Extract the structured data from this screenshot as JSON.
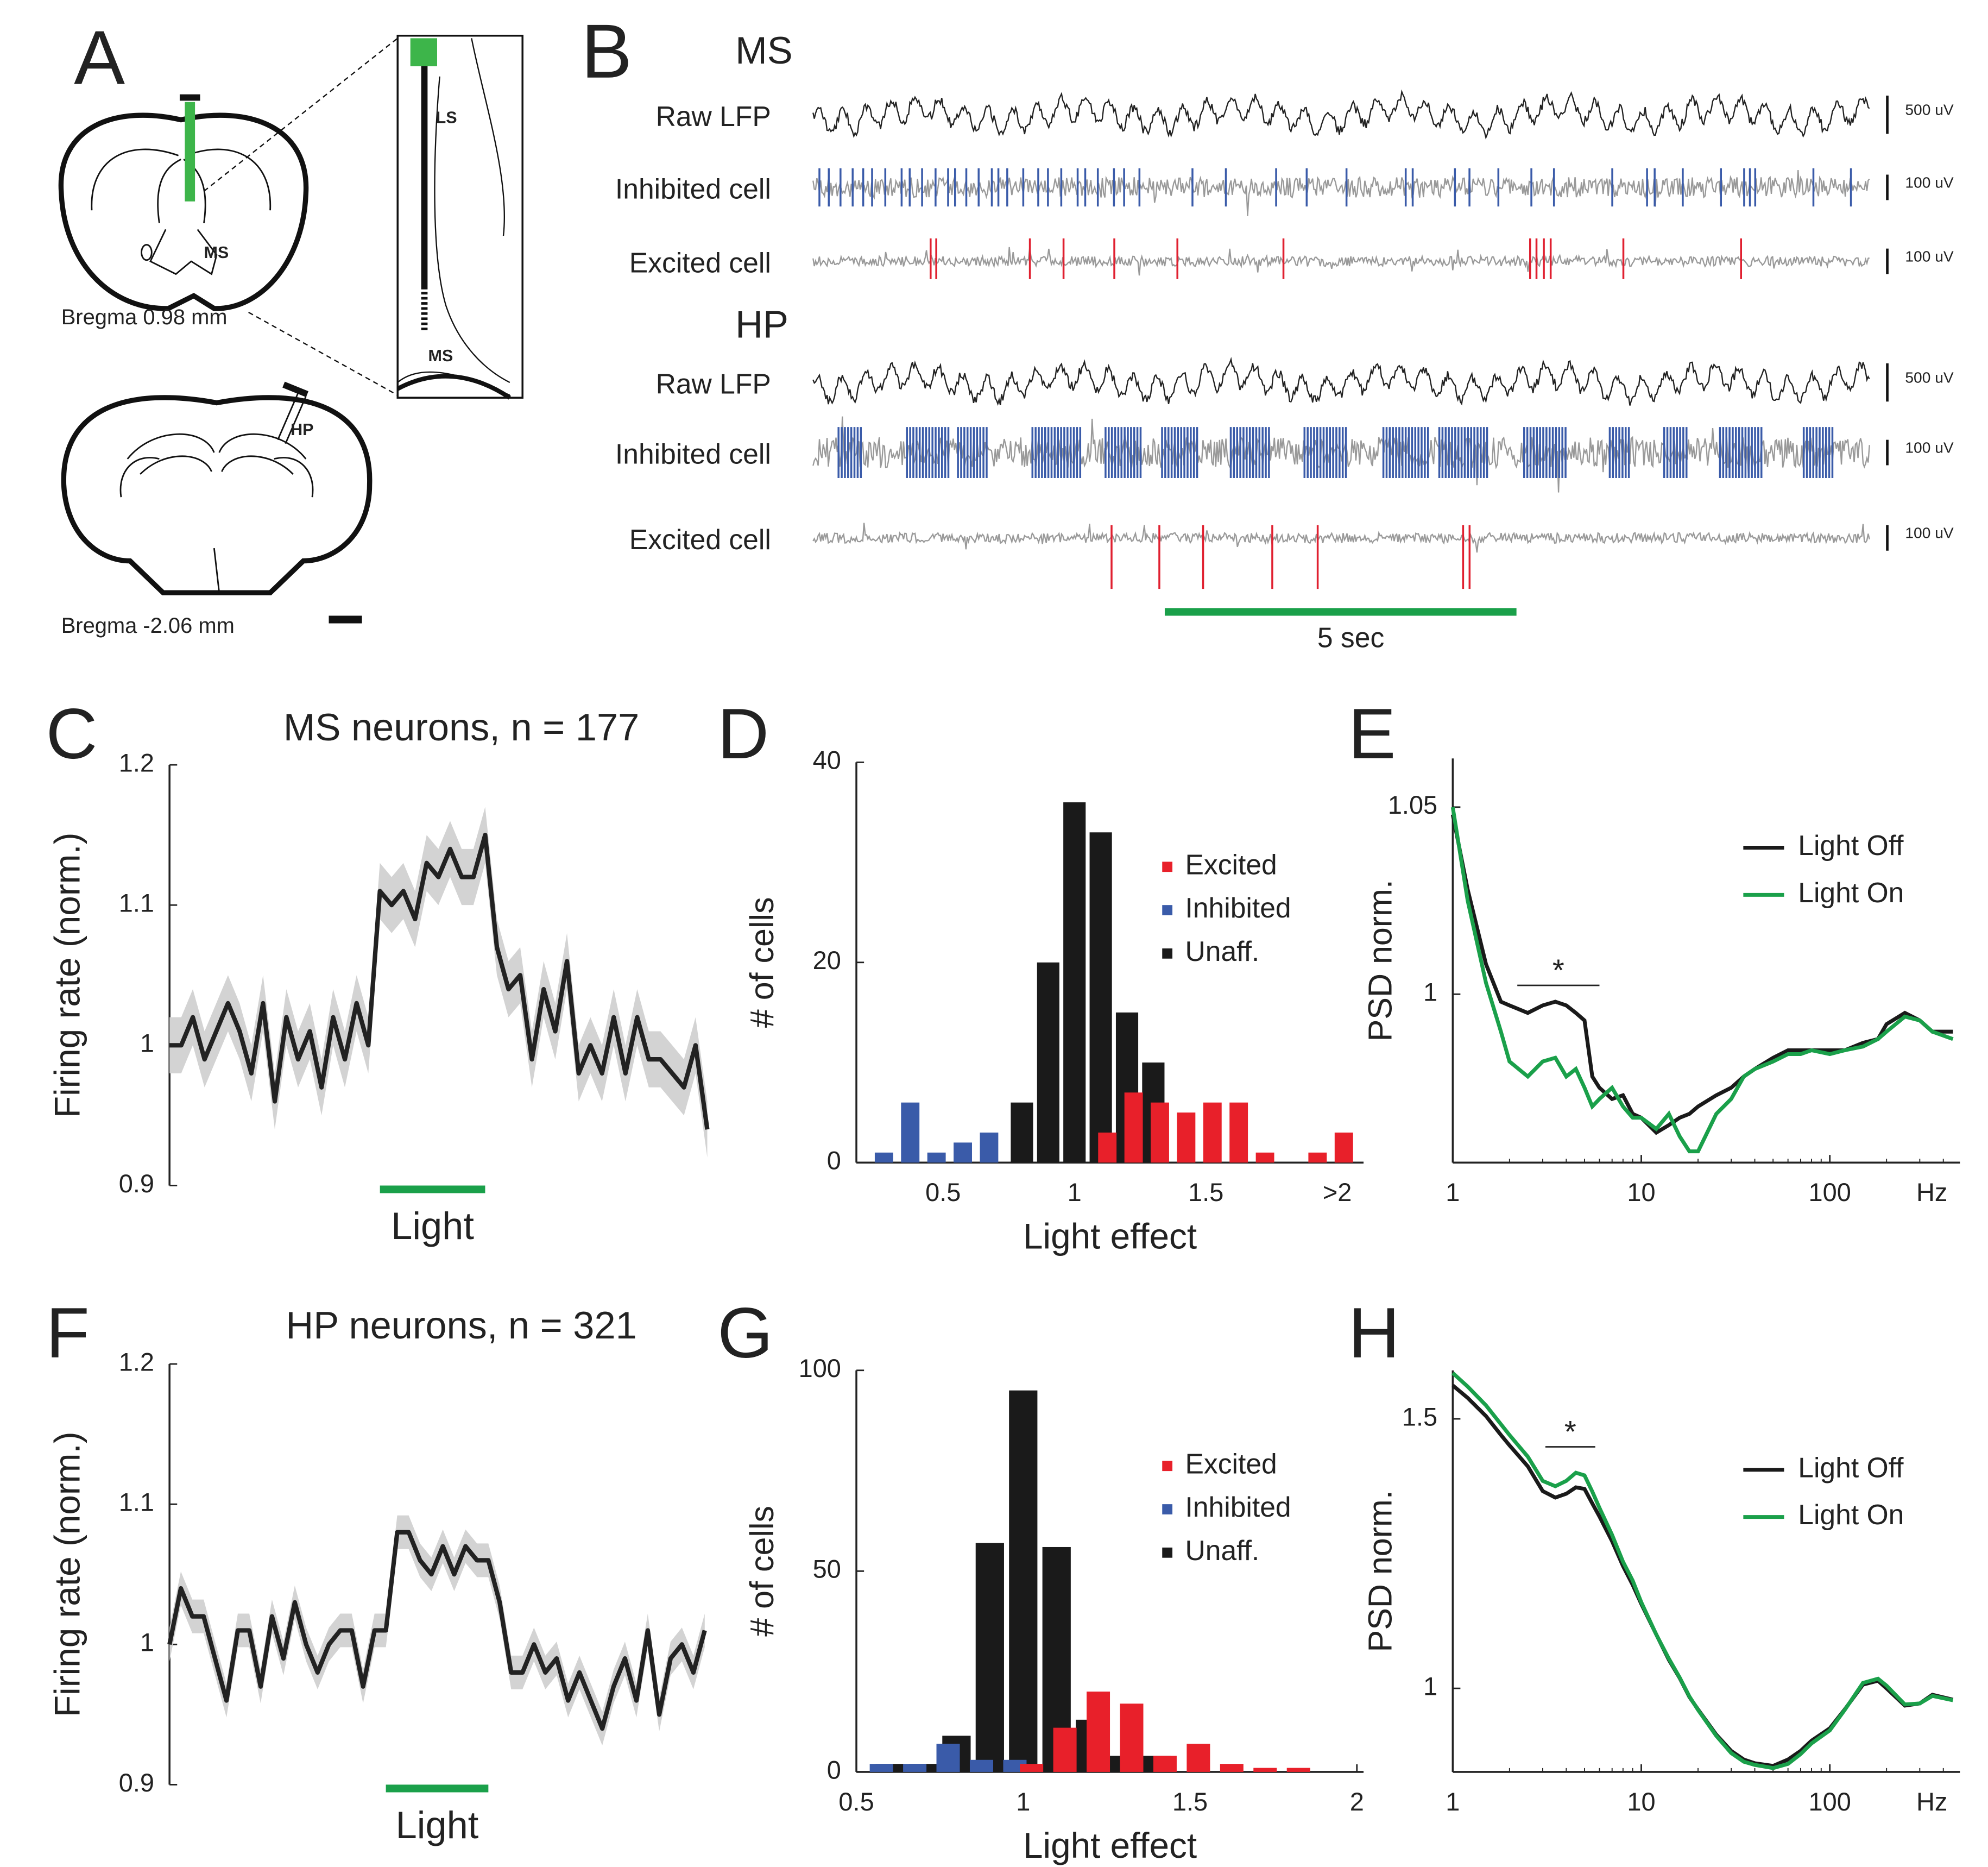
{
  "panel_a": {
    "letter": "A",
    "top_region": "MS",
    "inset_labels": [
      "LS",
      "MS"
    ],
    "top_caption": "Bregma 0.98 mm",
    "bottom_region": "HP",
    "bottom_caption": "Bregma -2.06 mm"
  },
  "panel_b": {
    "letter": "B",
    "groups": [
      {
        "name": "MS",
        "rows": [
          "Raw LFP",
          "Inhibited cell",
          "Excited cell"
        ],
        "scales": [
          "500 uV",
          "100 uV",
          "100 uV"
        ]
      },
      {
        "name": "HP",
        "rows": [
          "Raw LFP",
          "Inhibited cell",
          "Excited cell"
        ],
        "scales": [
          "500 uV",
          "100 uV",
          "100 uV"
        ]
      }
    ],
    "time_scale": "5 sec"
  },
  "chart_data": [
    {
      "panel_label": "C",
      "type": "line",
      "title": "MS neurons, n = 177",
      "ylabel": "Firing rate (norm.)",
      "color": "#222222",
      "band_color": "#d3d3d3",
      "error": 0.02,
      "values": [
        1,
        1,
        1.02,
        0.99,
        1.01,
        1.03,
        1.01,
        0.98,
        1.03,
        0.96,
        1.02,
        0.99,
        1.01,
        0.97,
        1.02,
        0.99,
        1.03,
        1,
        1.11,
        1.1,
        1.11,
        1.09,
        1.13,
        1.12,
        1.14,
        1.12,
        1.12,
        1.15,
        1.07,
        1.04,
        1.05,
        0.99,
        1.04,
        1.01,
        1.06,
        0.98,
        1,
        0.98,
        1.02,
        0.98,
        1.02,
        0.99,
        0.99,
        0.98,
        0.97,
        1,
        0.94
      ],
      "ylim": [
        0.9,
        1.2
      ],
      "yticks": [
        0.9,
        1,
        1.1,
        1.2
      ],
      "light": {
        "label": "Light",
        "start": 18,
        "end": 27,
        "color": "#1aa04a"
      }
    },
    {
      "panel_label": "D",
      "type": "histogram",
      "ylabel": "# of cells",
      "xlabel": "Light effect",
      "bins": [
        0.25,
        0.35,
        0.45,
        0.55,
        0.65,
        0.75,
        0.85,
        0.95,
        1.05,
        1.15,
        1.25,
        1.35,
        1.45,
        1.55,
        1.65,
        1.75,
        1.85,
        1.95,
        2.05
      ],
      "series": [
        {
          "name": "Excited",
          "color": "#e8202a",
          "values": [
            0,
            0,
            0,
            0,
            0,
            0,
            0,
            0,
            3,
            7,
            6,
            5,
            6,
            6,
            1,
            0,
            1,
            3
          ]
        },
        {
          "name": "Inhibited",
          "color": "#3a5ba9",
          "values": [
            1,
            6,
            1,
            2,
            3,
            0,
            0,
            0,
            0,
            0,
            0,
            0,
            0,
            0,
            0,
            0,
            0,
            0
          ]
        },
        {
          "name": "Unaff.",
          "color": "#1a1a1a",
          "values": [
            0,
            0,
            0,
            0,
            0,
            6,
            20,
            36,
            33,
            15,
            10,
            0,
            0,
            0,
            0,
            0,
            0,
            0
          ]
        }
      ],
      "xlim": [
        0.17,
        2.1
      ],
      "xticks": [
        0.5,
        1,
        1.5,
        {
          "value": 2,
          "label": ">2"
        }
      ],
      "ylim": [
        0,
        40
      ],
      "yticks": [
        0,
        20,
        40
      ]
    },
    {
      "panel_label": "E",
      "type": "line",
      "xscale": "log",
      "ylabel": "PSD norm.",
      "xlabel": "Hz",
      "x": [
        1,
        1.2,
        1.5,
        1.8,
        2,
        2.5,
        3,
        3.5,
        4,
        4.5,
        5,
        5.5,
        6,
        7,
        8,
        9,
        10,
        12,
        14,
        16,
        18,
        20,
        25,
        30,
        35,
        40,
        50,
        60,
        70,
        80,
        100,
        120,
        150,
        180,
        200,
        250,
        300,
        350,
        450
      ],
      "series": [
        {
          "name": "Light Off",
          "color": "#1a1a1a",
          "values": [
            1.048,
            1.028,
            1.008,
            0.998,
            0.997,
            0.995,
            0.997,
            0.998,
            0.997,
            0.995,
            0.993,
            0.978,
            0.975,
            0.972,
            0.973,
            0.968,
            0.967,
            0.963,
            0.965,
            0.967,
            0.968,
            0.97,
            0.973,
            0.975,
            0.978,
            0.98,
            0.983,
            0.985,
            0.985,
            0.985,
            0.985,
            0.985,
            0.987,
            0.988,
            0.992,
            0.995,
            0.993,
            0.99,
            0.99
          ]
        },
        {
          "name": "Light On",
          "color": "#1aa04a",
          "values": [
            1.05,
            1.025,
            1.003,
            0.99,
            0.982,
            0.978,
            0.982,
            0.983,
            0.978,
            0.98,
            0.975,
            0.97,
            0.972,
            0.975,
            0.97,
            0.967,
            0.967,
            0.964,
            0.968,
            0.962,
            0.958,
            0.958,
            0.968,
            0.972,
            0.978,
            0.98,
            0.982,
            0.984,
            0.984,
            0.985,
            0.984,
            0.985,
            0.986,
            0.988,
            0.99,
            0.994,
            0.993,
            0.99,
            0.988
          ]
        }
      ],
      "xlim": [
        1,
        490
      ],
      "xticks": [
        1,
        10,
        100
      ],
      "ylim": [
        0.955,
        1.063
      ],
      "yticks": [
        1,
        1.05
      ],
      "annotation": {
        "text": "*",
        "x": [
          2.2,
          6
        ]
      }
    },
    {
      "panel_label": "F",
      "type": "line",
      "title": "HP neurons, n = 321",
      "ylabel": "Firing rate (norm.)",
      "color": "#222222",
      "band_color": "#d3d3d3",
      "error": 0.012,
      "values": [
        1,
        1.04,
        1.02,
        1.02,
        0.99,
        0.96,
        1.01,
        1.01,
        0.97,
        1.02,
        0.99,
        1.03,
        1,
        0.98,
        1,
        1.01,
        1.01,
        0.97,
        1.01,
        1.01,
        1.08,
        1.08,
        1.06,
        1.05,
        1.07,
        1.05,
        1.07,
        1.06,
        1.06,
        1.03,
        0.98,
        0.98,
        1,
        0.98,
        0.99,
        0.96,
        0.98,
        0.96,
        0.94,
        0.97,
        0.99,
        0.96,
        1.01,
        0.95,
        0.99,
        1,
        0.98,
        1.01
      ],
      "ylim": [
        0.9,
        1.2
      ],
      "yticks": [
        0.9,
        1,
        1.1,
        1.2
      ],
      "light": {
        "label": "Light",
        "start": 19,
        "end": 28,
        "color": "#1aa04a"
      }
    },
    {
      "panel_label": "G",
      "type": "histogram",
      "ylabel": "# of cells",
      "xlabel": "Light effect",
      "bins": [
        0.55,
        0.65,
        0.75,
        0.85,
        0.95,
        1.05,
        1.15,
        1.25,
        1.35,
        1.45,
        1.55,
        1.65,
        1.75,
        1.85,
        1.95
      ],
      "series": [
        {
          "name": "Excited",
          "color": "#e8202a",
          "values": [
            0,
            0,
            0,
            0,
            2,
            11,
            20,
            17,
            4,
            7,
            2,
            1,
            1,
            0
          ]
        },
        {
          "name": "Inhibited",
          "color": "#3a5ba9",
          "values": [
            2,
            2,
            7,
            3,
            3,
            0,
            0,
            0,
            0,
            0,
            0,
            0,
            0,
            0
          ]
        },
        {
          "name": "Unaff.",
          "color": "#1a1a1a",
          "values": [
            2,
            2,
            9,
            57,
            95,
            56,
            13,
            4,
            4,
            0,
            0,
            0,
            0,
            0
          ]
        }
      ],
      "xlim": [
        0.5,
        2.02
      ],
      "xticks": [
        0.5,
        1,
        1.5,
        2
      ],
      "ylim": [
        0,
        100
      ],
      "yticks": [
        0,
        50,
        100
      ]
    },
    {
      "panel_label": "H",
      "type": "line",
      "xscale": "log",
      "ylabel": "PSD norm.",
      "xlabel": "Hz",
      "x": [
        1,
        1.2,
        1.5,
        1.8,
        2,
        2.5,
        3,
        3.5,
        4,
        4.5,
        5,
        5.5,
        6,
        7,
        8,
        9,
        10,
        12,
        14,
        16,
        18,
        20,
        25,
        30,
        35,
        40,
        50,
        60,
        70,
        80,
        100,
        120,
        150,
        180,
        200,
        250,
        300,
        350,
        450
      ],
      "series": [
        {
          "name": "Light Off",
          "color": "#1a1a1a",
          "values": [
            1.562,
            1.539,
            1.505,
            1.47,
            1.451,
            1.412,
            1.366,
            1.354,
            1.361,
            1.373,
            1.37,
            1.343,
            1.319,
            1.273,
            1.227,
            1.192,
            1.157,
            1.1,
            1.053,
            1.019,
            0.984,
            0.961,
            0.914,
            0.884,
            0.868,
            0.861,
            0.856,
            0.868,
            0.884,
            0.903,
            0.926,
            0.961,
            1.007,
            1.014,
            1,
            0.968,
            0.972,
            0.988,
            0.979
          ]
        },
        {
          "name": "Light On",
          "color": "#1aa04a",
          "values": [
            1.585,
            1.56,
            1.525,
            1.49,
            1.47,
            1.43,
            1.385,
            1.375,
            1.385,
            1.4,
            1.395,
            1.365,
            1.335,
            1.285,
            1.235,
            1.2,
            1.16,
            1.1,
            1.055,
            1.02,
            0.985,
            0.96,
            0.912,
            0.88,
            0.864,
            0.858,
            0.852,
            0.86,
            0.878,
            0.898,
            0.922,
            0.96,
            1.01,
            1.018,
            1.005,
            0.97,
            0.972,
            0.986,
            0.978
          ]
        }
      ],
      "xlim": [
        1,
        490
      ],
      "xticks": [
        1,
        10,
        100
      ],
      "ylim": [
        0.845,
        1.59
      ],
      "yticks": [
        1,
        1.5
      ],
      "annotation": {
        "text": "*",
        "x": [
          3.1,
          5.7
        ]
      }
    }
  ]
}
